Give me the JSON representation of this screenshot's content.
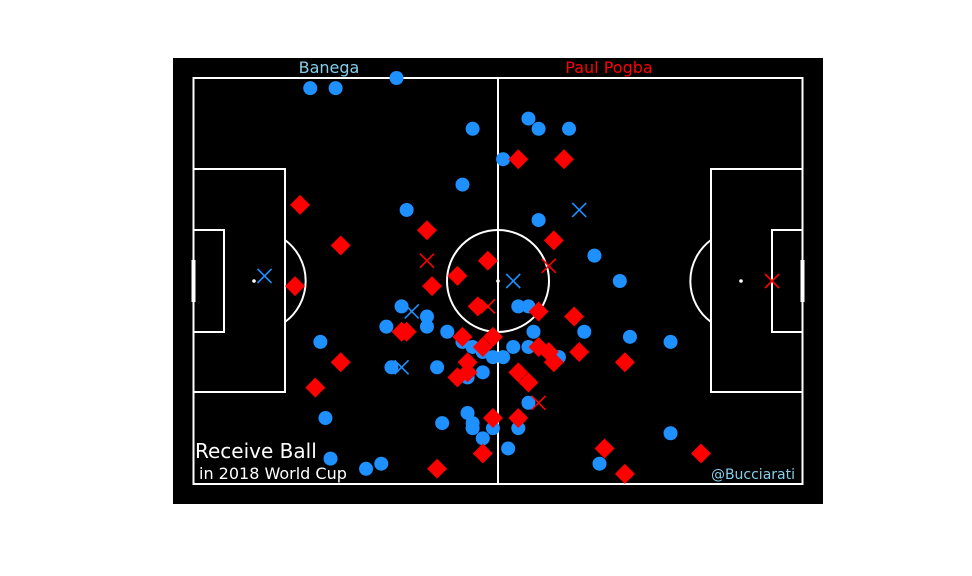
{
  "labels": {
    "player_left": "Banega",
    "player_right": "Paul Pogba",
    "title": "Receive Ball",
    "subtitle": "in 2018 World Cup",
    "credit": "@Bucciarati"
  },
  "colors": {
    "background": "#000000",
    "lines": "#ffffff",
    "banega": "#1e90ff",
    "pogba": "#ff0000",
    "banega_label": "#87ceeb",
    "credit": "#87ceeb"
  },
  "chart_data": {
    "type": "scatter",
    "pitch": {
      "length": 120,
      "width": 80
    },
    "series": [
      {
        "name": "Banega",
        "marker": "circle",
        "points": [
          [
            23,
            2
          ],
          [
            28,
            2
          ],
          [
            40,
            0
          ],
          [
            55,
            10
          ],
          [
            66,
            8
          ],
          [
            68,
            10
          ],
          [
            74,
            10
          ],
          [
            61,
            16
          ],
          [
            53,
            21
          ],
          [
            42,
            26
          ],
          [
            68,
            28
          ],
          [
            79,
            35
          ],
          [
            84,
            40
          ],
          [
            41,
            45
          ],
          [
            38,
            49
          ],
          [
            46,
            47
          ],
          [
            46,
            49
          ],
          [
            50,
            50
          ],
          [
            66,
            45
          ],
          [
            64,
            45
          ],
          [
            67,
            50
          ],
          [
            53,
            52
          ],
          [
            55,
            53
          ],
          [
            57,
            54
          ],
          [
            61,
            55
          ],
          [
            63,
            53
          ],
          [
            59,
            55
          ],
          [
            66,
            53
          ],
          [
            39,
            57
          ],
          [
            48,
            57
          ],
          [
            57,
            58
          ],
          [
            54,
            59
          ],
          [
            71,
            56
          ],
          [
            72,
            55
          ],
          [
            77,
            50
          ],
          [
            86,
            51
          ],
          [
            94,
            52
          ],
          [
            25,
            52
          ],
          [
            26,
            67
          ],
          [
            49,
            68
          ],
          [
            54,
            66
          ],
          [
            55,
            69
          ],
          [
            55,
            68
          ],
          [
            59,
            69
          ],
          [
            64,
            69
          ],
          [
            66,
            64
          ],
          [
            57,
            71
          ],
          [
            62,
            73
          ],
          [
            27,
            75
          ],
          [
            34,
            77
          ],
          [
            37,
            76
          ],
          [
            80,
            76
          ],
          [
            94,
            70
          ]
        ]
      },
      {
        "name": "Banega",
        "marker": "x",
        "points": [
          [
            14,
            39
          ],
          [
            43,
            46
          ],
          [
            41,
            57
          ],
          [
            63,
            40
          ],
          [
            76,
            26
          ]
        ]
      },
      {
        "name": "Paul Pogba",
        "marker": "diamond",
        "points": [
          [
            64,
            16
          ],
          [
            73,
            16
          ],
          [
            21,
            25
          ],
          [
            29,
            33
          ],
          [
            46,
            30
          ],
          [
            71,
            32
          ],
          [
            52,
            39
          ],
          [
            58,
            36
          ],
          [
            20,
            41
          ],
          [
            47,
            41
          ],
          [
            56,
            45
          ],
          [
            68,
            46
          ],
          [
            75,
            47
          ],
          [
            42,
            50
          ],
          [
            41,
            50
          ],
          [
            53,
            51
          ],
          [
            59,
            51
          ],
          [
            57,
            53
          ],
          [
            68,
            53
          ],
          [
            70,
            54
          ],
          [
            76,
            54
          ],
          [
            85,
            56
          ],
          [
            71,
            56
          ],
          [
            54,
            56
          ],
          [
            54,
            58
          ],
          [
            64,
            58
          ],
          [
            29,
            56
          ],
          [
            24,
            61
          ],
          [
            52,
            59
          ],
          [
            66,
            60
          ],
          [
            59,
            67
          ],
          [
            64,
            67
          ],
          [
            48,
            77
          ],
          [
            57,
            74
          ],
          [
            81,
            73
          ],
          [
            100,
            74
          ],
          [
            85,
            78
          ]
        ]
      },
      {
        "name": "Paul Pogba",
        "marker": "x",
        "points": [
          [
            46,
            36
          ],
          [
            70,
            37
          ],
          [
            58,
            45
          ],
          [
            68,
            64
          ],
          [
            114,
            40
          ]
        ]
      }
    ]
  }
}
